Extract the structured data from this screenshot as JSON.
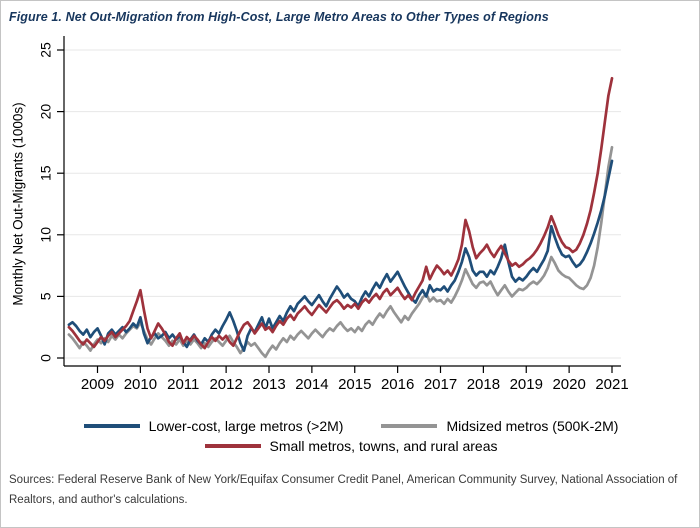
{
  "figure": {
    "title": "Figure 1. Net Out-Migration from High-Cost, Large Metro Areas to Other Types of Regions",
    "sources": "Sources: Federal Reserve Bank of New York/Equifax Consumer Credit Panel, American Community Survey, National Association of Realtors, and author's calculations."
  },
  "legend": {
    "items": [
      {
        "label": "Lower-cost, large metros (>2M)",
        "color": "#1f4e79"
      },
      {
        "label": "Midsized metros (500K-2M)",
        "color": "#949494"
      },
      {
        "label": "Small metros, towns, and rural areas",
        "color": "#9e323c"
      }
    ]
  },
  "chart_data": {
    "type": "line",
    "title": "Figure 1. Net Out-Migration from High-Cost, Large Metro Areas to Other Types of Regions",
    "xlabel": "",
    "ylabel": "Monthly Net Out-Migrants (1000s)",
    "ylim": [
      0,
      25
    ],
    "yticks": [
      0,
      5,
      10,
      15,
      20,
      25
    ],
    "xtick_labels": [
      "2009",
      "2010",
      "2011",
      "2012",
      "2013",
      "2014",
      "2015",
      "2016",
      "2017",
      "2018",
      "2019",
      "2020",
      "2021"
    ],
    "frequency": "monthly",
    "x_start": "2008-05",
    "x_end": "2021-01",
    "grid": "horizontal",
    "legend_position": "bottom",
    "axis_color": "#000000",
    "grid_color": "#e7e7e7",
    "series": [
      {
        "name": "Midsized metros (500K-2M)",
        "color": "#949494",
        "values": [
          1.9,
          1.6,
          1.2,
          0.8,
          1.3,
          1.0,
          0.6,
          1.1,
          1.5,
          1.2,
          1.6,
          1.3,
          1.8,
          1.5,
          1.9,
          1.6,
          2.0,
          2.3,
          2.6,
          2.4,
          2.9,
          2.2,
          1.5,
          1.1,
          1.6,
          2.0,
          1.7,
          1.4,
          1.0,
          1.4,
          1.1,
          1.5,
          1.0,
          1.4,
          1.1,
          1.5,
          1.2,
          0.8,
          1.2,
          0.9,
          1.3,
          1.6,
          1.3,
          1.0,
          1.4,
          1.8,
          1.3,
          0.9,
          0.4,
          0.8,
          1.3,
          1.0,
          1.2,
          0.8,
          0.4,
          0.1,
          0.6,
          1.0,
          0.7,
          1.2,
          1.6,
          1.3,
          1.8,
          1.5,
          1.9,
          2.2,
          1.9,
          1.6,
          2.0,
          2.3,
          2.0,
          1.7,
          2.1,
          2.4,
          2.2,
          2.6,
          2.9,
          2.5,
          2.2,
          2.4,
          2.1,
          2.5,
          2.2,
          2.7,
          3.0,
          2.7,
          3.2,
          3.6,
          3.3,
          3.8,
          4.2,
          3.7,
          3.3,
          2.9,
          3.4,
          3.1,
          3.6,
          4.0,
          4.4,
          4.9,
          5.2,
          4.6,
          4.9,
          4.6,
          4.7,
          4.4,
          4.8,
          4.5,
          5.0,
          5.6,
          6.3,
          7.2,
          6.6,
          6.0,
          5.7,
          6.1,
          6.2,
          5.9,
          6.2,
          5.6,
          5.1,
          5.5,
          5.9,
          5.4,
          5.0,
          5.3,
          5.6,
          5.5,
          5.7,
          6.0,
          6.2,
          6.0,
          6.3,
          6.7,
          7.3,
          8.2,
          7.7,
          7.1,
          6.8,
          6.6,
          6.5,
          6.2,
          5.9,
          5.7,
          5.6,
          5.9,
          6.5,
          7.5,
          9.0,
          11.0,
          13.3,
          15.5,
          17.1
        ]
      },
      {
        "name": "Lower-cost, large metros (>2M)",
        "color": "#1f4e79",
        "values": [
          2.7,
          2.9,
          2.6,
          2.2,
          1.9,
          2.3,
          1.7,
          2.1,
          2.4,
          1.8,
          1.1,
          2.0,
          2.3,
          1.9,
          2.2,
          2.5,
          2.1,
          2.4,
          2.8,
          2.5,
          3.3,
          2.0,
          1.2,
          1.7,
          2.0,
          1.6,
          1.8,
          2.1,
          1.6,
          1.9,
          1.5,
          1.8,
          1.3,
          0.9,
          1.5,
          1.9,
          1.4,
          1.1,
          1.6,
          1.3,
          1.9,
          2.3,
          2.0,
          2.6,
          3.1,
          3.7,
          3.0,
          2.2,
          1.2,
          0.6,
          1.8,
          2.4,
          2.1,
          2.7,
          3.3,
          2.4,
          3.2,
          2.4,
          2.9,
          3.4,
          3.0,
          3.7,
          4.2,
          3.8,
          4.4,
          4.7,
          5.0,
          4.6,
          4.3,
          4.7,
          5.1,
          4.6,
          4.2,
          4.8,
          5.3,
          5.8,
          5.4,
          4.9,
          5.2,
          4.8,
          4.6,
          4.2,
          4.9,
          5.4,
          5.0,
          5.6,
          6.1,
          5.7,
          6.3,
          6.8,
          6.2,
          6.6,
          7.0,
          6.4,
          5.8,
          5.3,
          4.8,
          4.5,
          5.1,
          5.5,
          5.0,
          5.9,
          5.4,
          5.6,
          5.5,
          5.8,
          5.4,
          5.9,
          6.3,
          7.0,
          7.8,
          8.9,
          8.2,
          7.1,
          6.7,
          7.0,
          7.0,
          6.6,
          7.1,
          6.8,
          7.4,
          8.1,
          9.2,
          7.8,
          6.6,
          6.2,
          6.5,
          6.3,
          6.6,
          7.0,
          7.3,
          7.0,
          7.5,
          8.0,
          8.7,
          10.7,
          9.8,
          9.0,
          8.4,
          8.2,
          8.3,
          7.8,
          7.4,
          7.6,
          8.0,
          8.6,
          9.3,
          10.1,
          11.0,
          12.0,
          13.2,
          14.6,
          16.0
        ]
      },
      {
        "name": "Small metros, towns, and rural areas",
        "color": "#9e323c",
        "values": [
          2.5,
          2.2,
          1.8,
          1.4,
          1.1,
          1.5,
          1.2,
          0.9,
          1.3,
          1.7,
          1.4,
          1.8,
          2.1,
          1.7,
          2.0,
          2.3,
          2.6,
          3.0,
          3.8,
          4.6,
          5.5,
          3.9,
          2.4,
          1.6,
          2.2,
          2.8,
          2.4,
          1.9,
          1.3,
          1.0,
          1.6,
          2.0,
          1.2,
          1.7,
          1.4,
          1.8,
          1.5,
          1.1,
          0.8,
          1.3,
          1.7,
          1.4,
          1.8,
          1.5,
          1.8,
          1.3,
          1.0,
          1.6,
          2.2,
          2.7,
          2.9,
          2.5,
          2.0,
          2.4,
          2.8,
          2.3,
          2.5,
          2.1,
          2.6,
          3.0,
          2.7,
          3.2,
          3.5,
          3.1,
          3.6,
          3.9,
          4.2,
          3.8,
          3.5,
          3.9,
          4.3,
          4.0,
          3.7,
          4.1,
          4.5,
          4.7,
          4.4,
          4.0,
          4.3,
          4.1,
          4.4,
          4.0,
          4.5,
          4.8,
          4.5,
          4.9,
          5.2,
          4.8,
          5.3,
          5.6,
          5.1,
          5.4,
          5.7,
          5.2,
          4.8,
          5.1,
          4.7,
          5.3,
          5.8,
          6.3,
          7.4,
          6.4,
          7.0,
          7.5,
          7.2,
          6.8,
          7.1,
          6.7,
          7.3,
          8.0,
          9.2,
          11.2,
          10.3,
          9.0,
          8.1,
          8.5,
          8.8,
          9.2,
          8.6,
          8.2,
          8.7,
          9.1,
          8.5,
          7.9,
          7.5,
          7.7,
          7.4,
          7.6,
          7.9,
          8.1,
          8.4,
          8.8,
          9.3,
          9.9,
          10.6,
          11.5,
          10.8,
          10.0,
          9.4,
          9.0,
          8.9,
          8.6,
          8.8,
          9.3,
          10.0,
          10.9,
          12.0,
          13.4,
          15.0,
          17.0,
          19.2,
          21.3,
          22.7
        ]
      }
    ]
  }
}
